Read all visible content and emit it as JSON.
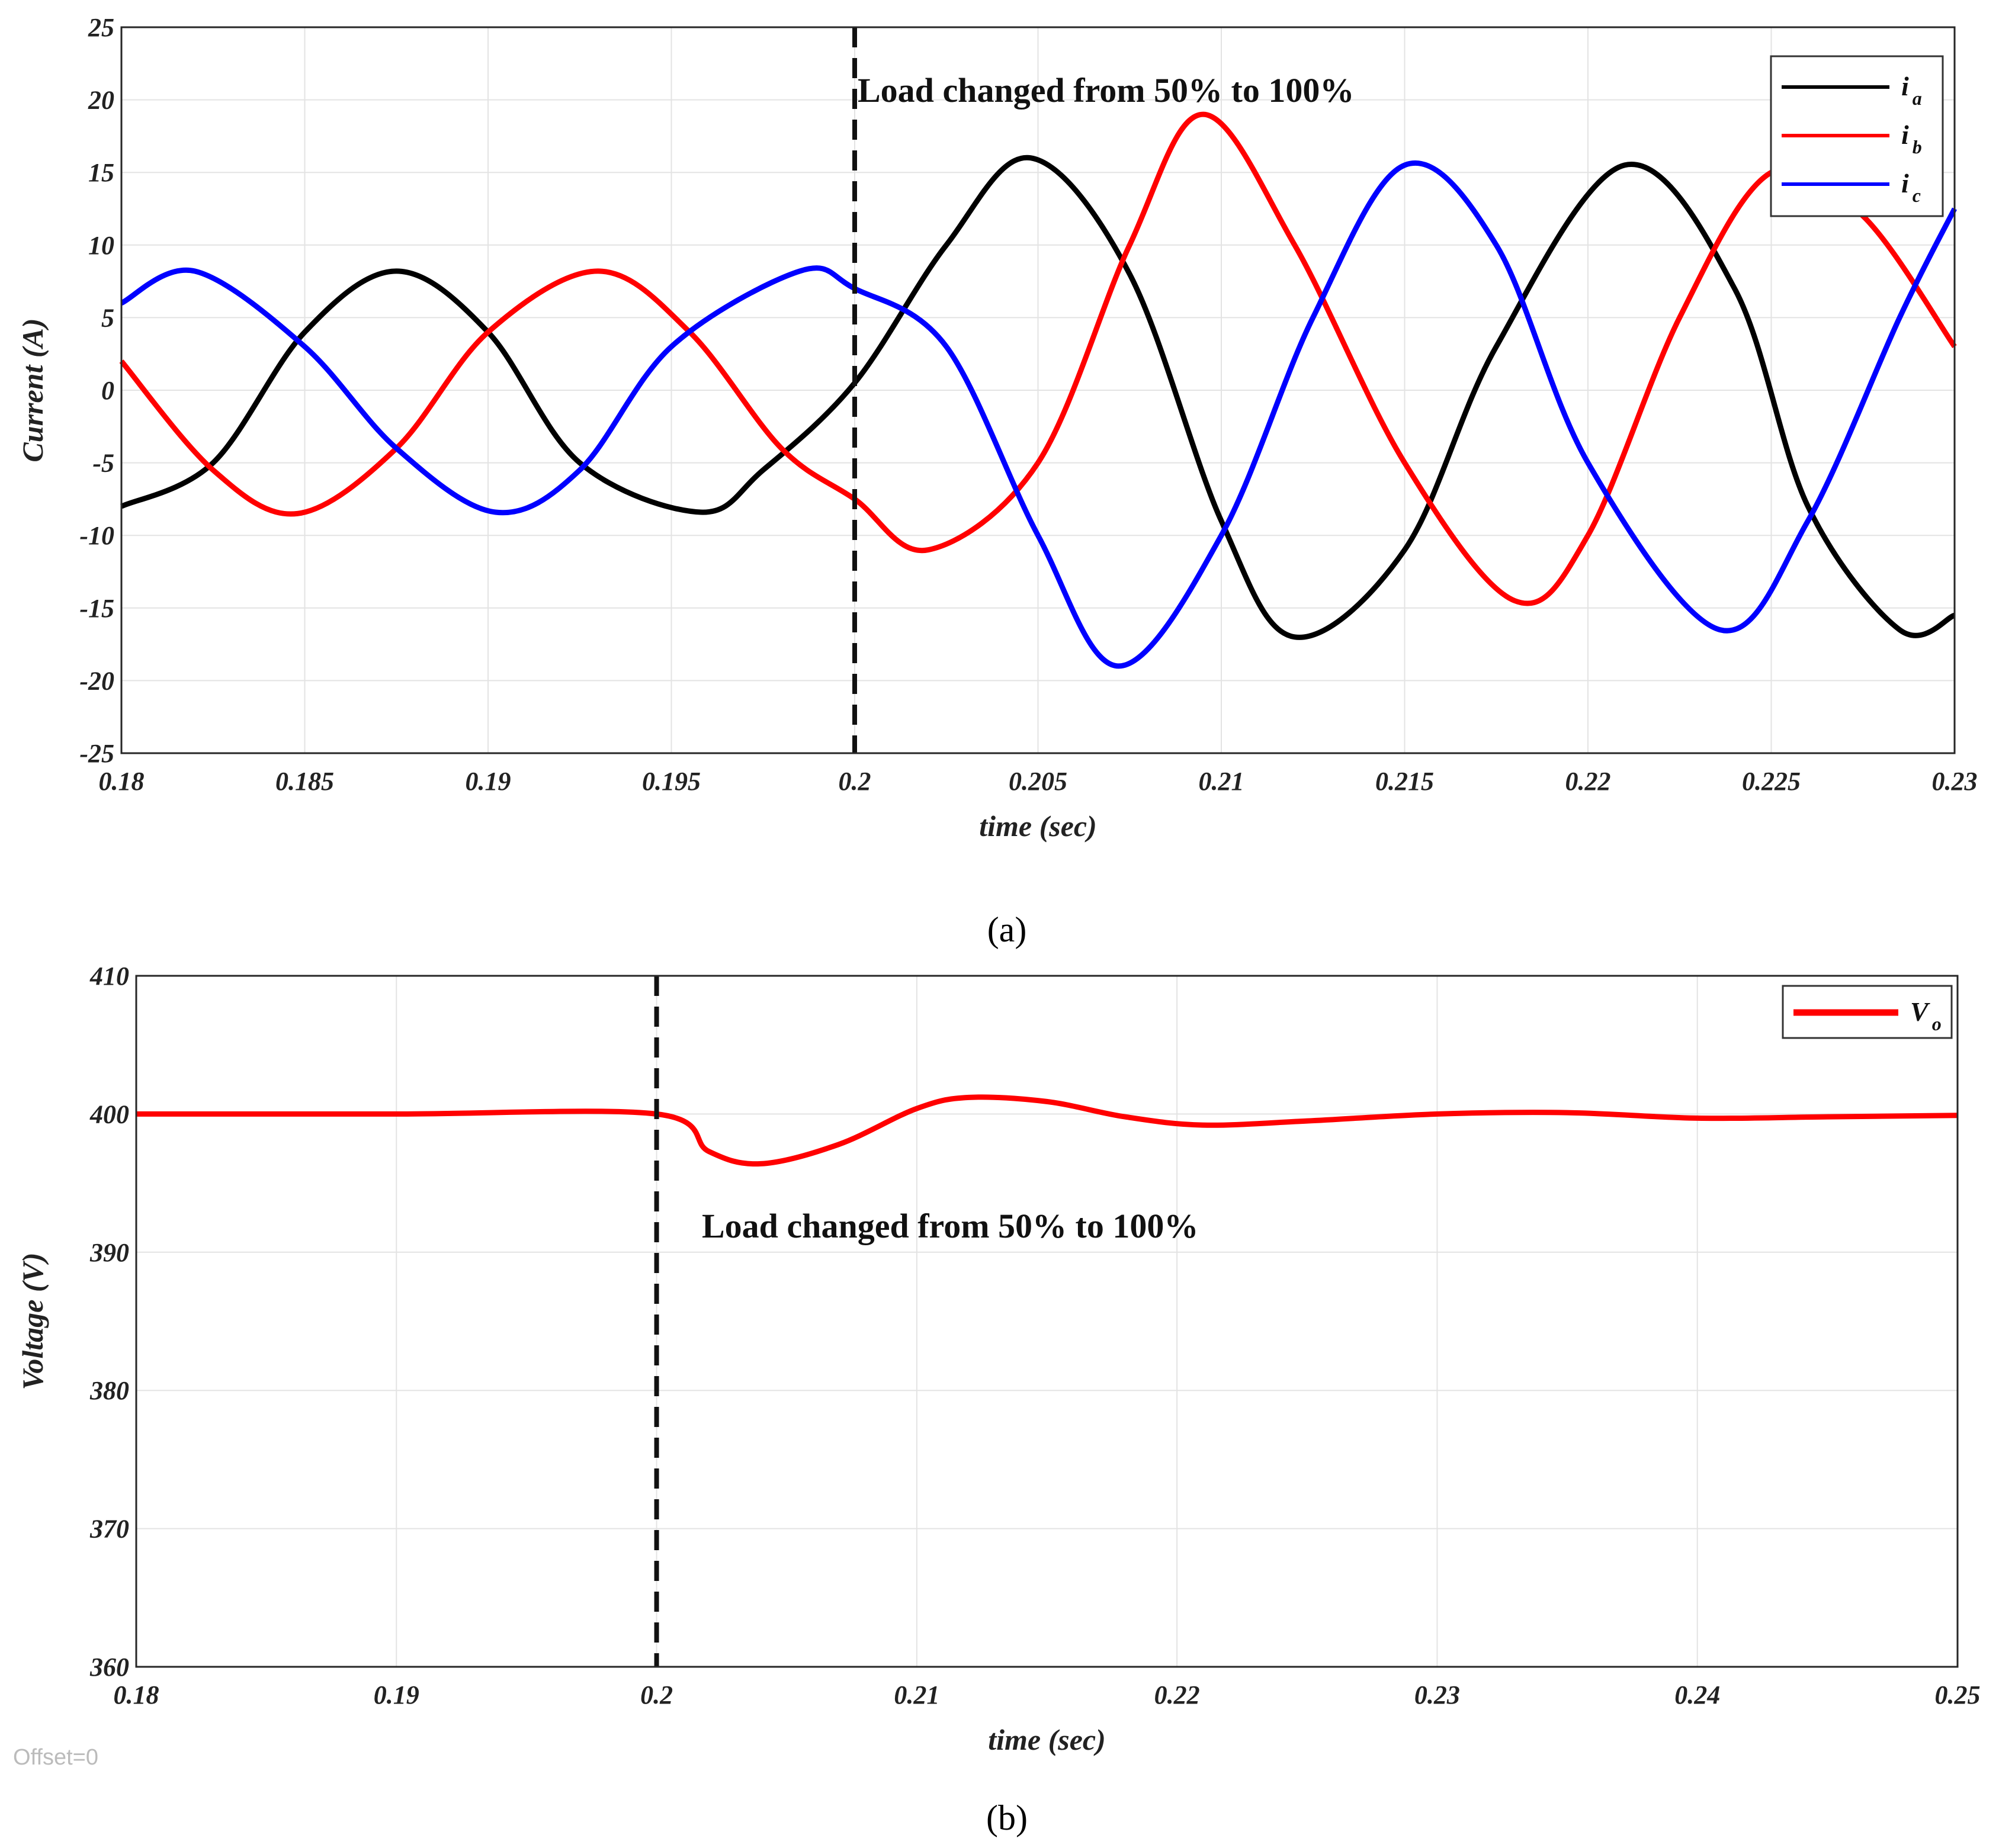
{
  "chart_data": [
    {
      "type": "line",
      "xlabel": "time (sec)",
      "ylabel": "Current (A)",
      "xlim": [
        0.18,
        0.23
      ],
      "ylim": [
        -25,
        25
      ],
      "xticks": [
        0.18,
        0.185,
        0.19,
        0.195,
        0.2,
        0.205,
        0.21,
        0.215,
        0.22,
        0.225,
        0.23
      ],
      "xtick_labels": [
        "0.18",
        "0.185",
        "0.19",
        "0.195",
        "0.2",
        "0.205",
        "0.21",
        "0.215",
        "0.22",
        "0.225",
        "0.23"
      ],
      "yticks": [
        -25,
        -20,
        -15,
        -10,
        -5,
        0,
        5,
        10,
        15,
        20,
        25
      ],
      "ytick_labels": [
        "-25",
        "-20",
        "-15",
        "-10",
        "-5",
        "0",
        "5",
        "10",
        "15",
        "20",
        "25"
      ],
      "grid": true,
      "legend_position": "top-right",
      "annotation": {
        "text": "Load changed from 50% to 100%",
        "x": 0.2
      },
      "vline_x": 0.2,
      "caption": "(a)",
      "series": [
        {
          "name": "i",
          "subscript": "a",
          "color": "#000000",
          "x": [
            0.18,
            0.1825,
            0.185,
            0.1875,
            0.19,
            0.1925,
            0.1958,
            0.1975,
            0.2,
            0.2025,
            0.2048,
            0.2075,
            0.21,
            0.212,
            0.215,
            0.2175,
            0.221,
            0.224,
            0.226,
            0.2285,
            0.23
          ],
          "y": [
            -8,
            -5,
            4,
            8.2,
            4,
            -5,
            -8.4,
            -5.5,
            0.5,
            10,
            16,
            8,
            -9,
            -17,
            -11,
            3,
            15.5,
            7,
            -8,
            -16.5,
            -15.5
          ]
        },
        {
          "name": "i",
          "subscript": "b",
          "color": "#ff0000",
          "x": [
            0.18,
            0.1825,
            0.1848,
            0.1875,
            0.19,
            0.193,
            0.1955,
            0.198,
            0.2,
            0.202,
            0.205,
            0.2075,
            0.2095,
            0.212,
            0.215,
            0.218,
            0.22,
            0.2225,
            0.225,
            0.2275,
            0.23
          ],
          "y": [
            2,
            -5.5,
            -8.5,
            -4,
            4,
            8.2,
            4,
            -4,
            -7.5,
            -11,
            -5,
            10,
            19,
            10,
            -5,
            -14.5,
            -10,
            5,
            15,
            12,
            3
          ]
        },
        {
          "name": "i",
          "subscript": "c",
          "color": "#0000ff",
          "x": [
            0.18,
            0.182,
            0.185,
            0.1875,
            0.1902,
            0.1925,
            0.195,
            0.1985,
            0.2,
            0.2025,
            0.205,
            0.2072,
            0.21,
            0.2125,
            0.215,
            0.2175,
            0.22,
            0.2236,
            0.226,
            0.2285,
            0.23
          ],
          "y": [
            6,
            8.2,
            3,
            -4,
            -8.4,
            -5.5,
            3,
            8.2,
            7,
            3,
            -10,
            -19,
            -10,
            5,
            15.5,
            10,
            -5,
            -16.5,
            -9,
            5,
            12.5
          ]
        }
      ]
    },
    {
      "type": "line",
      "xlabel": "time (sec)",
      "ylabel": "Voltage (V)",
      "xlim": [
        0.18,
        0.25
      ],
      "ylim": [
        360,
        410
      ],
      "xticks": [
        0.18,
        0.19,
        0.2,
        0.21,
        0.22,
        0.23,
        0.24,
        0.25
      ],
      "xtick_labels": [
        "0.18",
        "0.19",
        "0.2",
        "0.21",
        "0.22",
        "0.23",
        "0.24",
        "0.25"
      ],
      "yticks": [
        360,
        370,
        380,
        390,
        400,
        410
      ],
      "ytick_labels": [
        "360",
        "370",
        "380",
        "390",
        "400",
        "410"
      ],
      "grid": true,
      "legend_position": "top-right",
      "annotation": {
        "text": "Load changed from 50% to 100%",
        "x": 0.2
      },
      "vline_x": 0.2,
      "caption": "(b)",
      "offset_note": "Offset=0",
      "series": [
        {
          "name": "V",
          "subscript": "o",
          "color": "#ff0000",
          "x": [
            0.18,
            0.19,
            0.2,
            0.202,
            0.204,
            0.207,
            0.21,
            0.212,
            0.215,
            0.218,
            0.221,
            0.225,
            0.23,
            0.235,
            0.24,
            0.245,
            0.25
          ],
          "y": [
            400,
            400,
            400,
            397.3,
            396.4,
            397.8,
            400.4,
            401.2,
            400.9,
            399.8,
            399.2,
            399.5,
            400,
            400.1,
            399.7,
            399.8,
            399.9
          ]
        }
      ]
    }
  ]
}
